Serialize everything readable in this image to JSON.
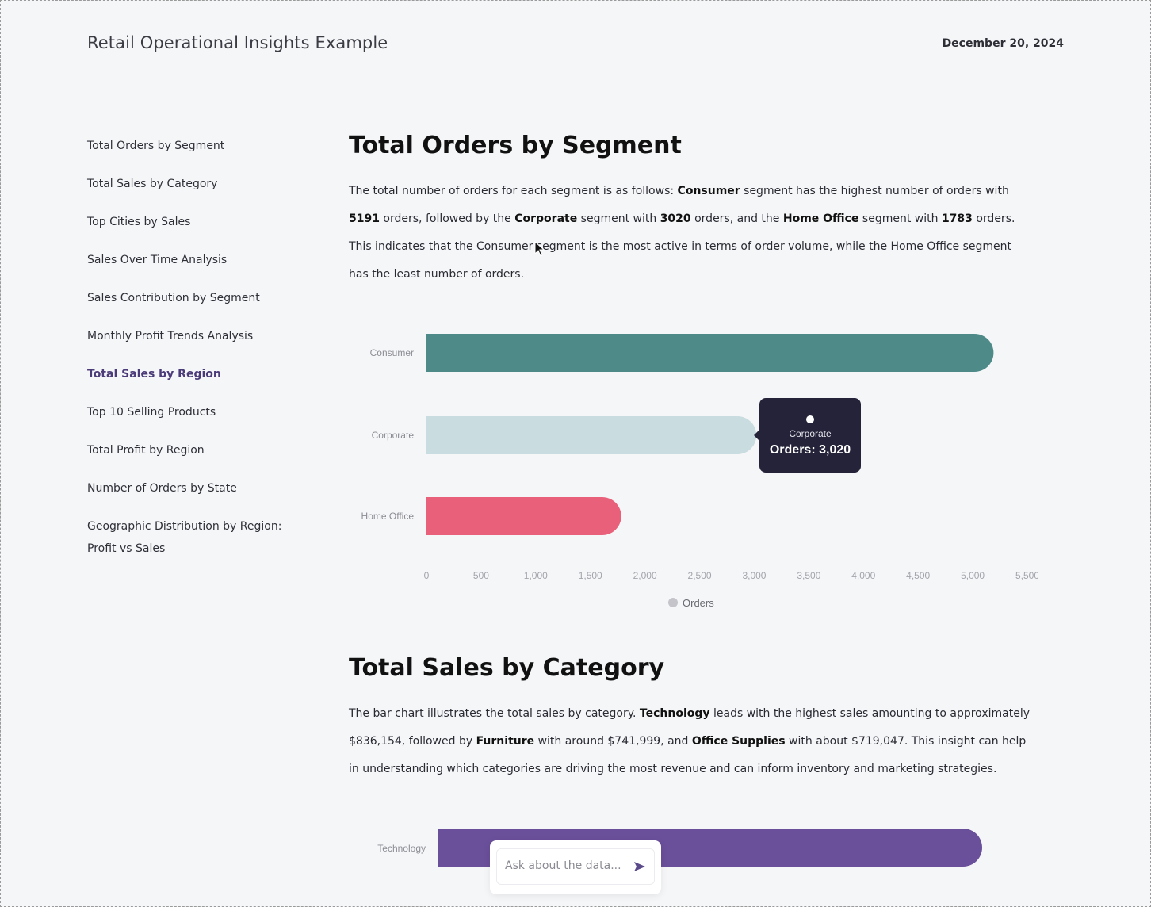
{
  "header": {
    "title": "Retail Operational Insights Example",
    "date": "December 20, 2024"
  },
  "sidebar": {
    "items": [
      {
        "label": "Total Orders by Segment"
      },
      {
        "label": "Total Sales by Category"
      },
      {
        "label": "Top Cities by Sales"
      },
      {
        "label": "Sales Over Time Analysis"
      },
      {
        "label": "Sales Contribution by Segment"
      },
      {
        "label": "Monthly Profit Trends Analysis"
      },
      {
        "label": "Total Sales by Region",
        "active": true
      },
      {
        "label": "Top 10 Selling Products"
      },
      {
        "label": "Total Profit by Region"
      },
      {
        "label": "Number of Orders by State"
      },
      {
        "label": "Geographic Distribution by Region:"
      },
      {
        "label": "Profit vs Sales"
      }
    ]
  },
  "sections": [
    {
      "title": "Total Orders by Segment",
      "text": {
        "p1": "The total number of orders for each segment is as follows: ",
        "b1": "Consumer",
        "p2": " segment has the highest number of orders with ",
        "b2": "5191",
        "p3": " orders, followed by the ",
        "b3": "Corporate",
        "p4": " segment with ",
        "b4": "3020",
        "p5": " orders, and the ",
        "b5": "Home Office",
        "p6": " segment with ",
        "b6": "1783",
        "p7": " orders. This indicates that the Consumer segment is the most active in terms of order volume, while the Home Office segment has the least number of orders."
      }
    },
    {
      "title": "Total Sales by Category",
      "text": {
        "p1": "The bar chart illustrates the total sales by category. ",
        "b1": "Technology",
        "p2": " leads with the highest sales amounting to approximately $836,154, followed by ",
        "b2": "Furniture",
        "p3": " with around $741,999, and ",
        "b3": "Office Supplies",
        "p4": " with about $719,047. This insight can help in understanding which categories are driving the most revenue and can inform inventory and marketing strategies."
      }
    }
  ],
  "chart_data": [
    {
      "type": "bar",
      "orientation": "horizontal",
      "categories": [
        "Consumer",
        "Corporate",
        "Home Office"
      ],
      "series": [
        {
          "name": "Orders",
          "values": [
            5191,
            3020,
            1783
          ]
        }
      ],
      "colors": [
        "#4e8b88",
        "#c9dcdf",
        "#e8607a"
      ],
      "xlim": [
        0,
        5500
      ],
      "xticks": [
        "0",
        "500",
        "1,000",
        "1,500",
        "2,000",
        "2,500",
        "3,000",
        "3,500",
        "4,000",
        "4,500",
        "5,000",
        "5,500"
      ],
      "legend": "bottom",
      "tooltip": {
        "category": "Corporate",
        "text": "Orders: 3,020"
      }
    },
    {
      "type": "bar",
      "orientation": "horizontal",
      "categories": [
        "Technology"
      ],
      "series": [
        {
          "values": [
            836154
          ]
        }
      ],
      "colors": [
        "#6a4f9a"
      ]
    }
  ],
  "chat": {
    "placeholder": "Ask about the data..."
  },
  "icons": {
    "send": "send-icon",
    "cursor": "mouse-pointer-icon"
  }
}
